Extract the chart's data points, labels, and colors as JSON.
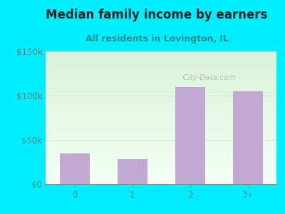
{
  "title": "Median family income by earners",
  "subtitle": "All residents in Lovington, IL",
  "categories": [
    "0",
    "1",
    "2",
    "3+"
  ],
  "values": [
    35000,
    28000,
    110000,
    105000
  ],
  "bar_color": "#c4a8d4",
  "bar_edge_color": "#b898c8",
  "ylim": [
    0,
    150000
  ],
  "yticks": [
    0,
    50000,
    100000,
    150000
  ],
  "ytick_labels": [
    "$0",
    "$50k",
    "$100k",
    "$150k"
  ],
  "outer_bg": "#00eeff",
  "plot_bg_top": "#daf0da",
  "plot_bg_bottom": "#f5fff5",
  "title_color": "#222222",
  "subtitle_color": "#2a8a8a",
  "tick_color": "#448888",
  "watermark_text": "  City-Data.com",
  "title_fontsize": 12,
  "subtitle_fontsize": 9,
  "tick_fontsize": 8.5
}
